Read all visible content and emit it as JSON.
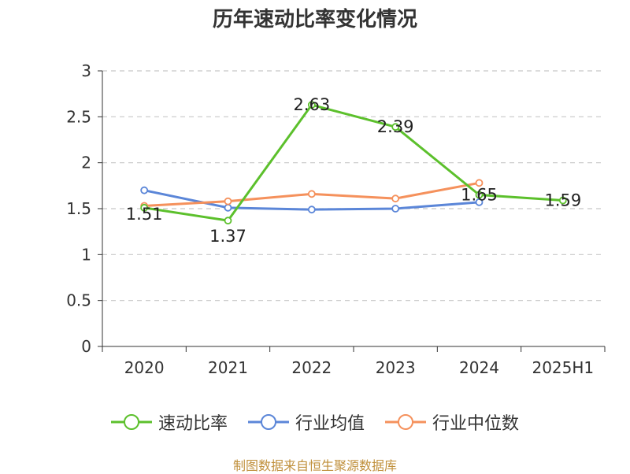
{
  "chart_data": {
    "type": "line",
    "title": "历年速动比率变化情况",
    "categories": [
      "2020",
      "2021",
      "2022",
      "2023",
      "2024",
      "2025H1"
    ],
    "ylim": [
      0,
      3
    ],
    "yticks": [
      0,
      0.5,
      1,
      1.5,
      2,
      2.5,
      3
    ],
    "ytick_labels": [
      "0",
      "0.5",
      "1",
      "1.5",
      "2",
      "2.5",
      "3"
    ],
    "grid": true,
    "legend_position": "bottom",
    "series": [
      {
        "name": "速动比率",
        "color": "#5cc02c",
        "values": [
          1.51,
          1.37,
          2.63,
          2.39,
          1.65,
          1.59
        ],
        "labels": [
          "1.51",
          "1.37",
          "2.63",
          "2.39",
          "1.65",
          "1.59"
        ]
      },
      {
        "name": "行业均值",
        "color": "#5b86d8",
        "values": [
          1.7,
          1.51,
          1.49,
          1.5,
          1.57,
          null
        ]
      },
      {
        "name": "行业中位数",
        "color": "#f5915c",
        "values": [
          1.53,
          1.58,
          1.66,
          1.61,
          1.78,
          null
        ]
      }
    ]
  },
  "source": "制图数据来自恒生聚源数据库"
}
